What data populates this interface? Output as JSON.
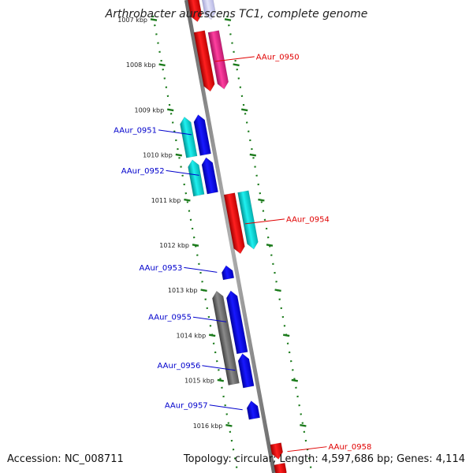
{
  "title": "Arthrobacter aurescens TC1, complete genome",
  "footer": {
    "accession": "Accession: NC_008711",
    "summary": "Topology: circular; Length: 4,597,686 bp; Genes: 4,114"
  },
  "colors": {
    "backbone": "#8a8a8a",
    "forward_label": "#e00000",
    "reverse_label": "#0000cc",
    "tick": "#1a7a1a",
    "red": "#ee0000",
    "magenta": "#e0208a",
    "blue": "#0000ee",
    "cyan": "#00c8c8",
    "gray": "#707070",
    "lavender": "#c8c8ee"
  },
  "ticks": [
    {
      "label": "1007 kbp",
      "kbp": 1007
    },
    {
      "label": "1008 kbp",
      "kbp": 1008
    },
    {
      "label": "1009 kbp",
      "kbp": 1009
    },
    {
      "label": "1010 kbp",
      "kbp": 1010
    },
    {
      "label": "1011 kbp",
      "kbp": 1011
    },
    {
      "label": "1012 kbp",
      "kbp": 1012
    },
    {
      "label": "1013 kbp",
      "kbp": 1013
    },
    {
      "label": "1014 kbp",
      "kbp": 1014
    },
    {
      "label": "1015 kbp",
      "kbp": 1015
    },
    {
      "label": "1016 kbp",
      "kbp": 1016
    }
  ],
  "genes": [
    {
      "label": "",
      "strand": "+",
      "start": 1006.5,
      "end": 1007.05,
      "color": "red",
      "track": "inner"
    },
    {
      "label": "",
      "strand": "+",
      "start": 1006.5,
      "end": 1007.0,
      "color": "lavender",
      "track": "outer"
    },
    {
      "label": "AAur_0950",
      "strand": "+",
      "start": 1007.25,
      "end": 1008.6,
      "color": "red",
      "track": "inner"
    },
    {
      "label": "",
      "strand": "+",
      "start": 1007.25,
      "end": 1008.55,
      "color": "magenta",
      "track": "outer"
    },
    {
      "label": "AAur_0951",
      "strand": "-",
      "start": 1009.1,
      "end": 1010.0,
      "color": "blue",
      "track": "inner"
    },
    {
      "label": "",
      "strand": "-",
      "start": 1009.15,
      "end": 1010.05,
      "color": "cyan",
      "track": "outer"
    },
    {
      "label": "AAur_0952",
      "strand": "-",
      "start": 1010.05,
      "end": 1010.85,
      "color": "blue",
      "track": "inner"
    },
    {
      "label": "",
      "strand": "-",
      "start": 1010.1,
      "end": 1010.9,
      "color": "cyan",
      "track": "outer"
    },
    {
      "label": "AAur_0954",
      "strand": "+",
      "start": 1010.85,
      "end": 1012.2,
      "color": "red",
      "track": "inner"
    },
    {
      "label": "",
      "strand": "+",
      "start": 1010.8,
      "end": 1012.1,
      "color": "cyan",
      "track": "outer"
    },
    {
      "label": "AAur_0953",
      "strand": "-",
      "start": 1012.45,
      "end": 1012.75,
      "color": "blue",
      "track": "inner"
    },
    {
      "label": "AAur_0955",
      "strand": "-",
      "start": 1013.0,
      "end": 1014.4,
      "color": "blue",
      "track": "inner"
    },
    {
      "label": "",
      "strand": "-",
      "start": 1013.0,
      "end": 1015.1,
      "color": "gray",
      "track": "outer"
    },
    {
      "label": "AAur_0956",
      "strand": "-",
      "start": 1014.4,
      "end": 1015.15,
      "color": "blue",
      "track": "inner"
    },
    {
      "label": "AAur_0957",
      "strand": "-",
      "start": 1015.45,
      "end": 1015.85,
      "color": "blue",
      "track": "inner"
    },
    {
      "label": "AAur_0958",
      "strand": "+",
      "start": 1016.4,
      "end": 1016.75,
      "color": "red",
      "track": "inner"
    },
    {
      "label": "",
      "strand": "+",
      "start": 1016.85,
      "end": 1017.2,
      "color": "red",
      "track": "inner"
    }
  ]
}
